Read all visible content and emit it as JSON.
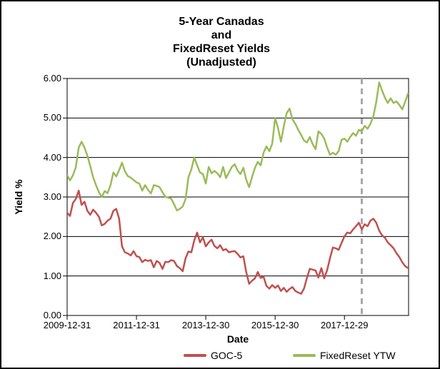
{
  "window": {
    "background": "#ffffff",
    "border_color": "#000000"
  },
  "title": {
    "lines": [
      "5-Year Canadas",
      "and",
      "FixedReset Yields",
      "(Unadjusted)"
    ]
  },
  "axes": {
    "y_title": "Yield %",
    "x_title": "Date"
  },
  "legend": {
    "items": [
      {
        "label": "GOC-5",
        "color": "#c0504d"
      },
      {
        "label": "FixedReset YTW",
        "color": "#9bbb59"
      }
    ]
  },
  "chart_data": {
    "type": "line",
    "title": "5-Year Canadas and FixedReset Yields (Unadjusted)",
    "xlabel": "Date",
    "ylabel": "Yield %",
    "ylim": [
      0,
      6
    ],
    "ytick_labels": [
      "0.00",
      "1.00",
      "2.00",
      "3.00",
      "4.00",
      "5.00",
      "6.00"
    ],
    "ytick_values": [
      0,
      1,
      2,
      3,
      4,
      5,
      6
    ],
    "xtick_labels": [
      "2009-12-31",
      "2011-12-31",
      "2013-12-30",
      "2015-12-30",
      "2017-12-29"
    ],
    "xtick_years": [
      2010.0,
      2012.0,
      2014.0,
      2016.0,
      2018.0
    ],
    "x_domain": [
      2010.0,
      2019.85
    ],
    "grid": "horizontal",
    "grid_color": "#000000",
    "legend_position": "bottom",
    "annotation": {
      "type": "vertical-dashed-line",
      "x_year": 2018.5,
      "color": "#a8a8a8"
    },
    "x_start_year": 2010.0,
    "x_step_months": 1,
    "series": [
      {
        "name": "GOC-5",
        "color": "#c0504d",
        "values": [
          2.6,
          2.52,
          2.85,
          2.95,
          3.16,
          2.8,
          2.88,
          2.65,
          2.55,
          2.68,
          2.6,
          2.5,
          2.28,
          2.32,
          2.4,
          2.45,
          2.65,
          2.7,
          2.45,
          1.75,
          1.6,
          1.57,
          1.52,
          1.63,
          1.5,
          1.48,
          1.35,
          1.41,
          1.38,
          1.4,
          1.22,
          1.38,
          1.33,
          1.18,
          1.36,
          1.35,
          1.4,
          1.38,
          1.25,
          1.2,
          1.12,
          1.45,
          1.62,
          1.6,
          1.9,
          2.1,
          1.85,
          1.98,
          1.75,
          1.85,
          1.92,
          1.76,
          1.7,
          1.78,
          1.65,
          1.68,
          1.6,
          1.62,
          1.63,
          1.56,
          1.47,
          1.5,
          1.1,
          0.8,
          0.88,
          0.94,
          1.1,
          0.95,
          0.98,
          0.75,
          0.68,
          0.77,
          0.7,
          0.76,
          0.62,
          0.7,
          0.6,
          0.67,
          0.72,
          0.62,
          0.58,
          0.55,
          0.68,
          0.95,
          1.18,
          1.16,
          1.14,
          0.96,
          1.2,
          0.94,
          1.15,
          1.45,
          1.72,
          1.7,
          1.66,
          1.84,
          2.0,
          2.1,
          2.08,
          2.18,
          2.26,
          2.35,
          2.18,
          2.31,
          2.26,
          2.4,
          2.45,
          2.35,
          2.15,
          2.03,
          1.97,
          1.85,
          1.78,
          1.7,
          1.58,
          1.48,
          1.35,
          1.25,
          1.2
        ]
      },
      {
        "name": "FixedReset YTW",
        "color": "#9bbb59",
        "values": [
          3.55,
          3.42,
          3.55,
          3.75,
          4.25,
          4.4,
          4.25,
          4.05,
          3.78,
          3.5,
          3.3,
          3.12,
          3.0,
          3.15,
          3.1,
          3.3,
          3.62,
          3.52,
          3.68,
          3.87,
          3.65,
          3.53,
          3.49,
          3.43,
          3.37,
          3.34,
          3.16,
          3.3,
          3.18,
          3.09,
          3.3,
          3.28,
          3.25,
          3.12,
          3.01,
          2.98,
          2.96,
          2.82,
          2.66,
          2.7,
          2.76,
          2.95,
          3.5,
          3.7,
          4.0,
          3.8,
          3.62,
          3.58,
          3.34,
          3.76,
          3.6,
          3.66,
          3.6,
          3.5,
          3.76,
          3.48,
          3.62,
          3.76,
          3.83,
          3.67,
          3.58,
          3.74,
          3.44,
          3.25,
          3.5,
          3.74,
          3.89,
          3.8,
          4.12,
          4.28,
          4.16,
          4.35,
          5.0,
          4.75,
          4.4,
          4.79,
          5.12,
          5.24,
          4.97,
          4.85,
          4.7,
          4.57,
          4.43,
          4.38,
          4.52,
          4.34,
          4.21,
          4.66,
          4.6,
          4.48,
          4.25,
          4.07,
          4.12,
          4.07,
          4.16,
          4.45,
          4.48,
          4.4,
          4.52,
          4.62,
          4.55,
          4.7,
          4.66,
          4.8,
          4.73,
          4.85,
          5.05,
          5.4,
          5.9,
          5.7,
          5.52,
          5.38,
          5.5,
          5.38,
          5.42,
          5.33,
          5.22,
          5.4,
          5.62
        ]
      }
    ]
  }
}
